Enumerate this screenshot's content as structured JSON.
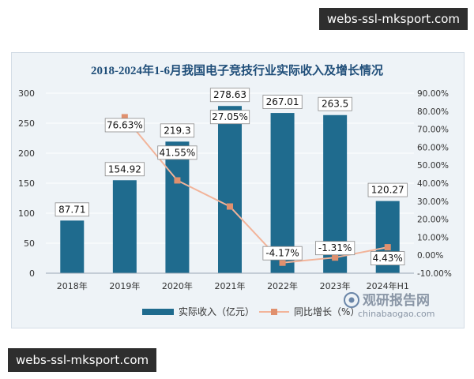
{
  "watermarks": {
    "top": "webs-ssl-mksport.com",
    "bottom": "webs-ssl-mksport.com"
  },
  "logo": {
    "name": "观研报告网",
    "url": "chinabaogao.com"
  },
  "colors": {
    "bar": "#1f6b8e",
    "line": "#f2b49a",
    "marker": "#e0906e",
    "title": "#1f4e79",
    "frame": "#eef3f7"
  },
  "chart_data": {
    "type": "bar",
    "title": "2018-2024年1-6月我国电子竞技行业实际收入及增长情况",
    "categories": [
      "2018年",
      "2019年",
      "2020年",
      "2021年",
      "2022年",
      "2023年",
      "2024年H1"
    ],
    "series": [
      {
        "name": "实际收入（亿元）",
        "type": "bar",
        "axis": "left",
        "values": [
          87.71,
          154.92,
          219.3,
          278.63,
          267.01,
          263.5,
          120.27
        ],
        "labels": [
          "87.71",
          "154.92",
          "219.3",
          "278.63",
          "267.01",
          "263.5",
          "120.27"
        ]
      },
      {
        "name": "同比增长（%）",
        "type": "line",
        "axis": "right",
        "values": [
          null,
          76.63,
          41.55,
          27.05,
          -4.17,
          -1.31,
          4.43
        ],
        "labels": [
          "",
          "76.63%",
          "41.55%",
          "27.05%",
          "-4.17%",
          "-1.31%",
          "4.43%"
        ]
      }
    ],
    "ylim_left": [
      0,
      300
    ],
    "yticks_left": [
      "0",
      "50",
      "100",
      "150",
      "200",
      "250",
      "300"
    ],
    "ylim_right": [
      -10,
      90
    ],
    "yticks_right": [
      "-10.00%",
      "0.00%",
      "10.00%",
      "20.00%",
      "30.00%",
      "40.00%",
      "50.00%",
      "60.00%",
      "70.00%",
      "80.00%",
      "90.00%"
    ],
    "grid": true,
    "legend": "bottom"
  }
}
